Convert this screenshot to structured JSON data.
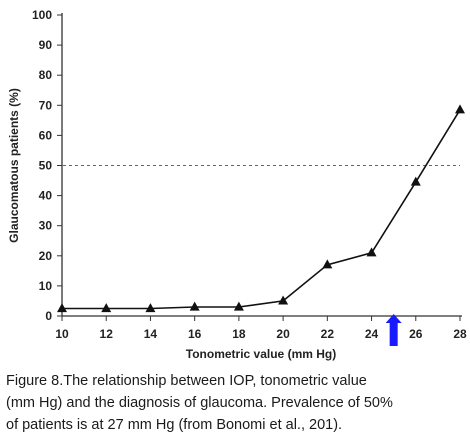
{
  "chart_data": {
    "type": "line",
    "x": [
      10,
      12,
      14,
      16,
      18,
      20,
      22,
      24,
      26,
      28
    ],
    "series": [
      {
        "values": [
          2.5,
          2.5,
          2.5,
          3,
          3,
          5,
          17,
          21,
          44.5,
          68.5
        ],
        "marker": "triangle",
        "color": "#111111"
      }
    ],
    "xlabel": "Tonometric value (mm Hg)",
    "ylabel": "Glaucomatous patients (%)",
    "xlim": [
      10,
      28
    ],
    "ylim": [
      0,
      100
    ],
    "x_ticks": [
      "10",
      "12",
      "14",
      "16",
      "18",
      "20",
      "22",
      "24",
      "26",
      "28"
    ],
    "y_ticks": [
      "0",
      "10",
      "20",
      "30",
      "40",
      "50",
      "60",
      "70",
      "80",
      "90",
      "100"
    ],
    "grid": false,
    "reference_line": {
      "y": 50,
      "style": "dashed"
    },
    "arrow_marker": {
      "x": 25,
      "color": "#1a1aff",
      "direction": "up"
    }
  },
  "caption": {
    "lines": [
      "Figure 8.The relationship between IOP, tonometric value",
      "(mm Hg) and the diagnosis of glaucoma.  Prevalence of 50%",
      "of patients is at 27 mm Hg (from Bonomi et al., 201)."
    ]
  }
}
